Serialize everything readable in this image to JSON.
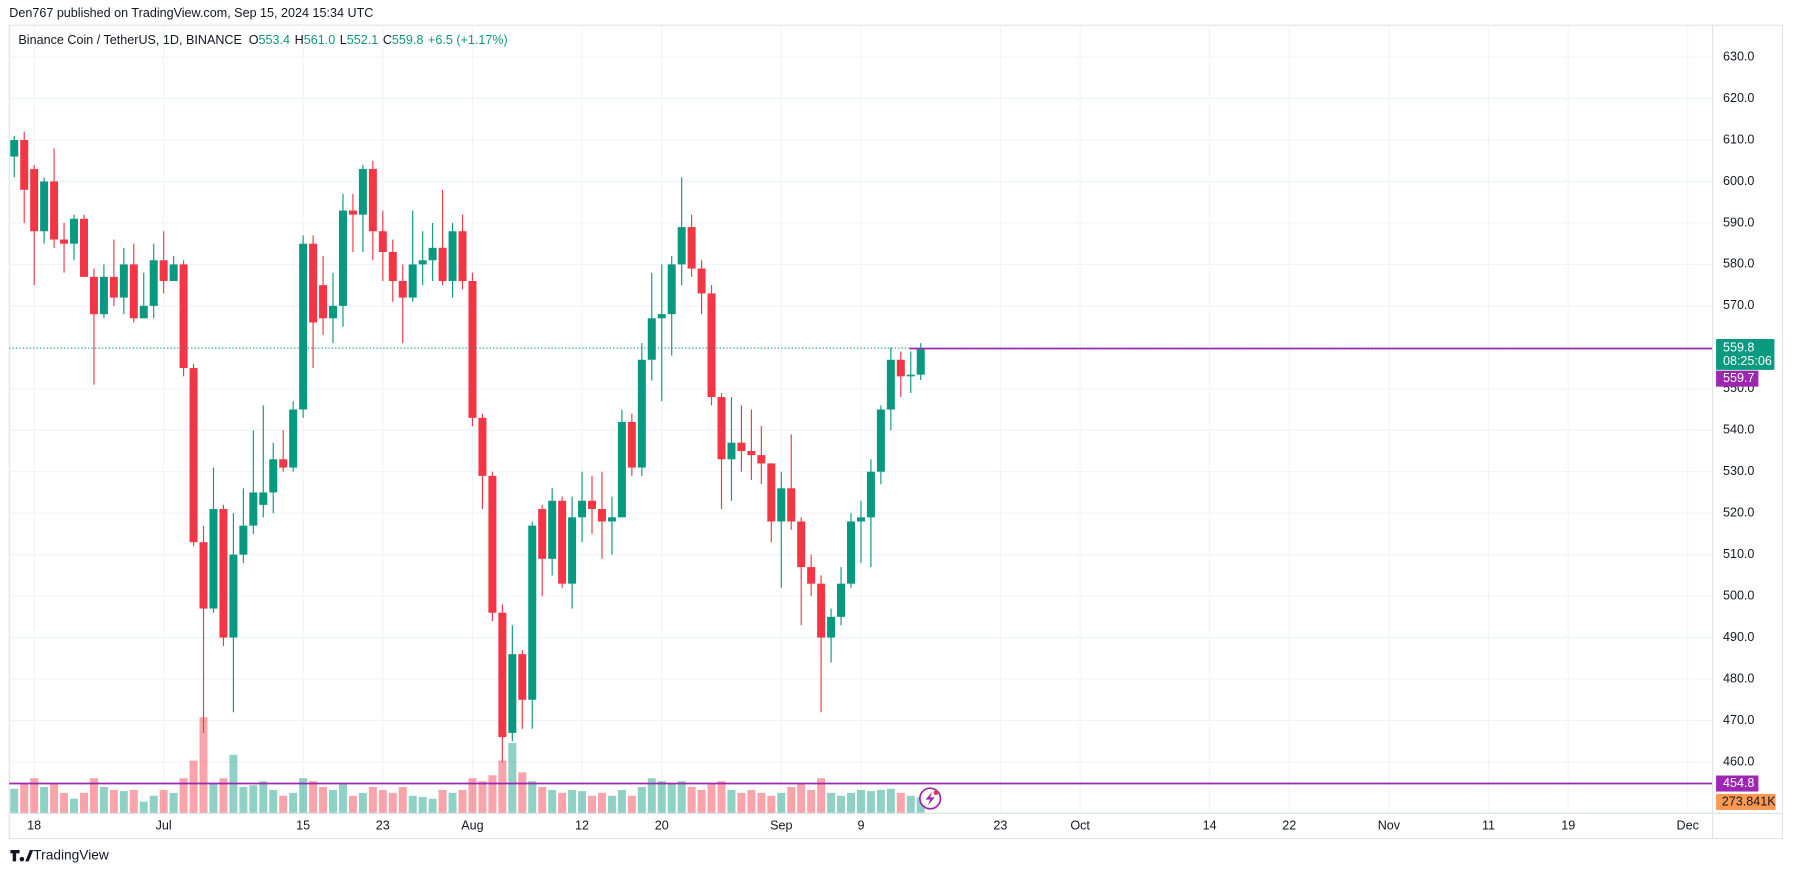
{
  "chart_data": {
    "type": "candlestick",
    "title": "Den767 published on TradingView.com, Sep 15, 2024 15:34 UTC",
    "legend": {
      "symbol": "Binance Coin / TetherUS, 1D, BINANCE",
      "ohlc": [
        {
          "key": "O",
          "value": "553.4"
        },
        {
          "key": "H",
          "value": "561.0"
        },
        {
          "key": "L",
          "value": "552.1"
        },
        {
          "key": "C",
          "value": "559.8"
        }
      ],
      "change": "+6.5 (+1.17%)"
    },
    "footer": "TradingView",
    "up_color": "#089981",
    "down_color": "#f23645",
    "x": [
      0,
      1,
      2,
      3,
      4,
      5,
      6,
      7,
      8,
      9,
      10,
      11,
      12,
      13,
      14,
      15,
      16,
      17,
      18,
      19,
      20,
      21,
      22,
      23,
      24,
      25,
      26,
      27,
      28,
      29,
      30,
      31,
      32,
      33,
      34,
      35,
      36,
      37,
      38,
      39,
      40,
      41,
      42,
      43,
      44,
      45,
      46,
      47,
      48,
      49,
      50,
      51,
      52,
      53,
      54,
      55,
      56,
      57,
      58,
      59,
      60,
      61,
      62,
      63,
      64,
      65,
      66,
      67,
      68,
      69,
      70,
      71,
      72,
      73,
      74,
      75,
      76,
      77,
      78,
      79,
      80,
      81,
      82,
      83,
      84,
      85,
      86,
      87,
      88,
      89,
      90,
      91
    ],
    "open": [
      606,
      610,
      603,
      588,
      600,
      586,
      585,
      591,
      577,
      568,
      577,
      572,
      580,
      567,
      570,
      581,
      576,
      580,
      555,
      513,
      497,
      521,
      490,
      510,
      517,
      522,
      525,
      533,
      531,
      545,
      585,
      575,
      567,
      570,
      593,
      592,
      603,
      588,
      583,
      576,
      572,
      580,
      581,
      584,
      576,
      588,
      576,
      543,
      529,
      496,
      467,
      486,
      475,
      521,
      509,
      523,
      503,
      519,
      523,
      521,
      518,
      519,
      542,
      531,
      557,
      567,
      568,
      580,
      589,
      579,
      573,
      548,
      533,
      537,
      535,
      534,
      532,
      518,
      526,
      518,
      507,
      503,
      490,
      495,
      503,
      518,
      519,
      530,
      545,
      557,
      553,
      553.4
    ],
    "high": [
      611,
      612,
      604,
      601,
      608,
      590,
      592,
      592,
      579,
      580,
      586,
      584,
      585,
      578,
      585,
      588,
      582,
      581,
      556,
      517,
      531,
      522,
      520,
      526,
      540,
      546,
      537,
      540,
      547,
      587,
      587,
      582,
      578,
      597,
      597,
      604,
      605,
      593,
      586,
      580,
      593,
      588,
      590,
      598,
      590,
      592,
      578,
      544,
      530,
      498,
      493,
      487,
      518,
      522,
      526,
      524,
      524,
      530,
      529,
      530,
      524,
      545,
      544,
      561,
      578,
      580,
      582,
      601,
      592,
      581,
      575,
      549,
      548,
      546,
      545,
      541,
      532,
      530,
      539,
      519,
      510,
      505,
      497,
      507,
      520,
      523,
      533,
      546,
      560,
      559,
      559,
      561
    ],
    "low": [
      601,
      590,
      575,
      585,
      584,
      578,
      581,
      577,
      551,
      567,
      570,
      568,
      566,
      567,
      567,
      573,
      576,
      553,
      512,
      467,
      496,
      488,
      472,
      508,
      515,
      519,
      520,
      530,
      530,
      543,
      555,
      563,
      561,
      565,
      583,
      583,
      581,
      576,
      571,
      561,
      571,
      575,
      576,
      575,
      572,
      574,
      541,
      521,
      494,
      460,
      465,
      468,
      468,
      500,
      505,
      502,
      497,
      513,
      515,
      509,
      510,
      519,
      529,
      529,
      552,
      547,
      558,
      575,
      577,
      568,
      546,
      521,
      523,
      530,
      528,
      527,
      513,
      502,
      516,
      493,
      500,
      472,
      484,
      493,
      502,
      508,
      507,
      527,
      540,
      548,
      549,
      552.1
    ],
    "close": [
      610,
      598,
      588,
      600,
      586,
      585,
      591,
      577,
      568,
      577,
      572,
      580,
      567,
      570,
      581,
      576,
      580,
      555,
      513,
      497,
      521,
      490,
      510,
      517,
      525,
      525,
      533,
      531,
      545,
      585,
      566,
      567,
      570,
      593,
      592,
      603,
      588,
      583,
      576,
      572,
      580,
      581,
      584,
      576,
      588,
      576,
      543,
      529,
      496,
      466,
      486,
      475,
      517,
      509,
      523,
      503,
      519,
      523,
      521,
      518,
      519,
      542,
      531,
      557,
      567,
      568,
      580,
      589,
      579,
      573,
      548,
      533,
      537,
      535,
      534,
      532,
      518,
      526,
      518,
      507,
      503,
      490,
      495,
      503,
      518,
      519,
      530,
      545,
      557,
      553,
      553.4,
      559.8
    ],
    "volume": [
      420,
      520,
      600,
      450,
      500,
      350,
      250,
      350,
      600,
      450,
      400,
      380,
      400,
      200,
      300,
      400,
      350,
      600,
      900,
      1640,
      500,
      600,
      1000,
      450,
      480,
      550,
      400,
      300,
      350,
      600,
      550,
      450,
      400,
      500,
      300,
      350,
      450,
      400,
      350,
      450,
      300,
      280,
      250,
      400,
      350,
      400,
      600,
      550,
      650,
      900,
      1200,
      700,
      550,
      450,
      400,
      350,
      400,
      380,
      300,
      350,
      300,
      400,
      300,
      450,
      600,
      550,
      500,
      550,
      450,
      400,
      500,
      550,
      400,
      350,
      400,
      350,
      300,
      350,
      450,
      500,
      400,
      600,
      350,
      300,
      350,
      400,
      380,
      400,
      420,
      350,
      300,
      273.841
    ],
    "volume_label": "273.841K",
    "last_price": 559.8,
    "countdown": "08:25:06",
    "hlines": [
      {
        "value": 559.7,
        "color": "#9c27b0"
      },
      {
        "value": 454.8,
        "color": "#9c27b0"
      }
    ],
    "ylim": [
      447.6,
      637.7
    ],
    "yticks": [
      {
        "value": 460,
        "label": "460.0"
      },
      {
        "value": 470,
        "label": "470.0"
      },
      {
        "value": 480,
        "label": "480.0"
      },
      {
        "value": 490,
        "label": "490.0"
      },
      {
        "value": 500,
        "label": "500.0"
      },
      {
        "value": 510,
        "label": "510.0"
      },
      {
        "value": 520,
        "label": "520.0"
      },
      {
        "value": 530,
        "label": "530.0"
      },
      {
        "value": 540,
        "label": "540.0"
      },
      {
        "value": 550,
        "label": "550.0"
      },
      {
        "value": 560,
        "label": "560.0"
      },
      {
        "value": 570,
        "label": "570.0"
      },
      {
        "value": 580,
        "label": "580.0"
      },
      {
        "value": 590,
        "label": "590.0"
      },
      {
        "value": 600,
        "label": "600.0"
      },
      {
        "value": 610,
        "label": "610.0"
      },
      {
        "value": 620,
        "label": "620.0"
      },
      {
        "value": 630,
        "label": "630.0"
      }
    ],
    "xlim": [
      -0.5,
      170.5
    ],
    "xticks": [
      {
        "value": 2,
        "label": "18"
      },
      {
        "value": 15,
        "label": "Jul"
      },
      {
        "value": 29,
        "label": "15"
      },
      {
        "value": 37,
        "label": "23"
      },
      {
        "value": 46,
        "label": "Aug"
      },
      {
        "value": 57,
        "label": "12"
      },
      {
        "value": 65,
        "label": "20"
      },
      {
        "value": 77,
        "label": "Sep"
      },
      {
        "value": 85,
        "label": "9"
      },
      {
        "value": 99,
        "label": "23"
      },
      {
        "value": 107,
        "label": "Oct"
      },
      {
        "value": 120,
        "label": "14"
      },
      {
        "value": 128,
        "label": "22"
      },
      {
        "value": 138,
        "label": "Nov"
      },
      {
        "value": 148,
        "label": "11"
      },
      {
        "value": 156,
        "label": "19"
      },
      {
        "value": 168,
        "label": "Dec"
      }
    ],
    "grid": true
  }
}
